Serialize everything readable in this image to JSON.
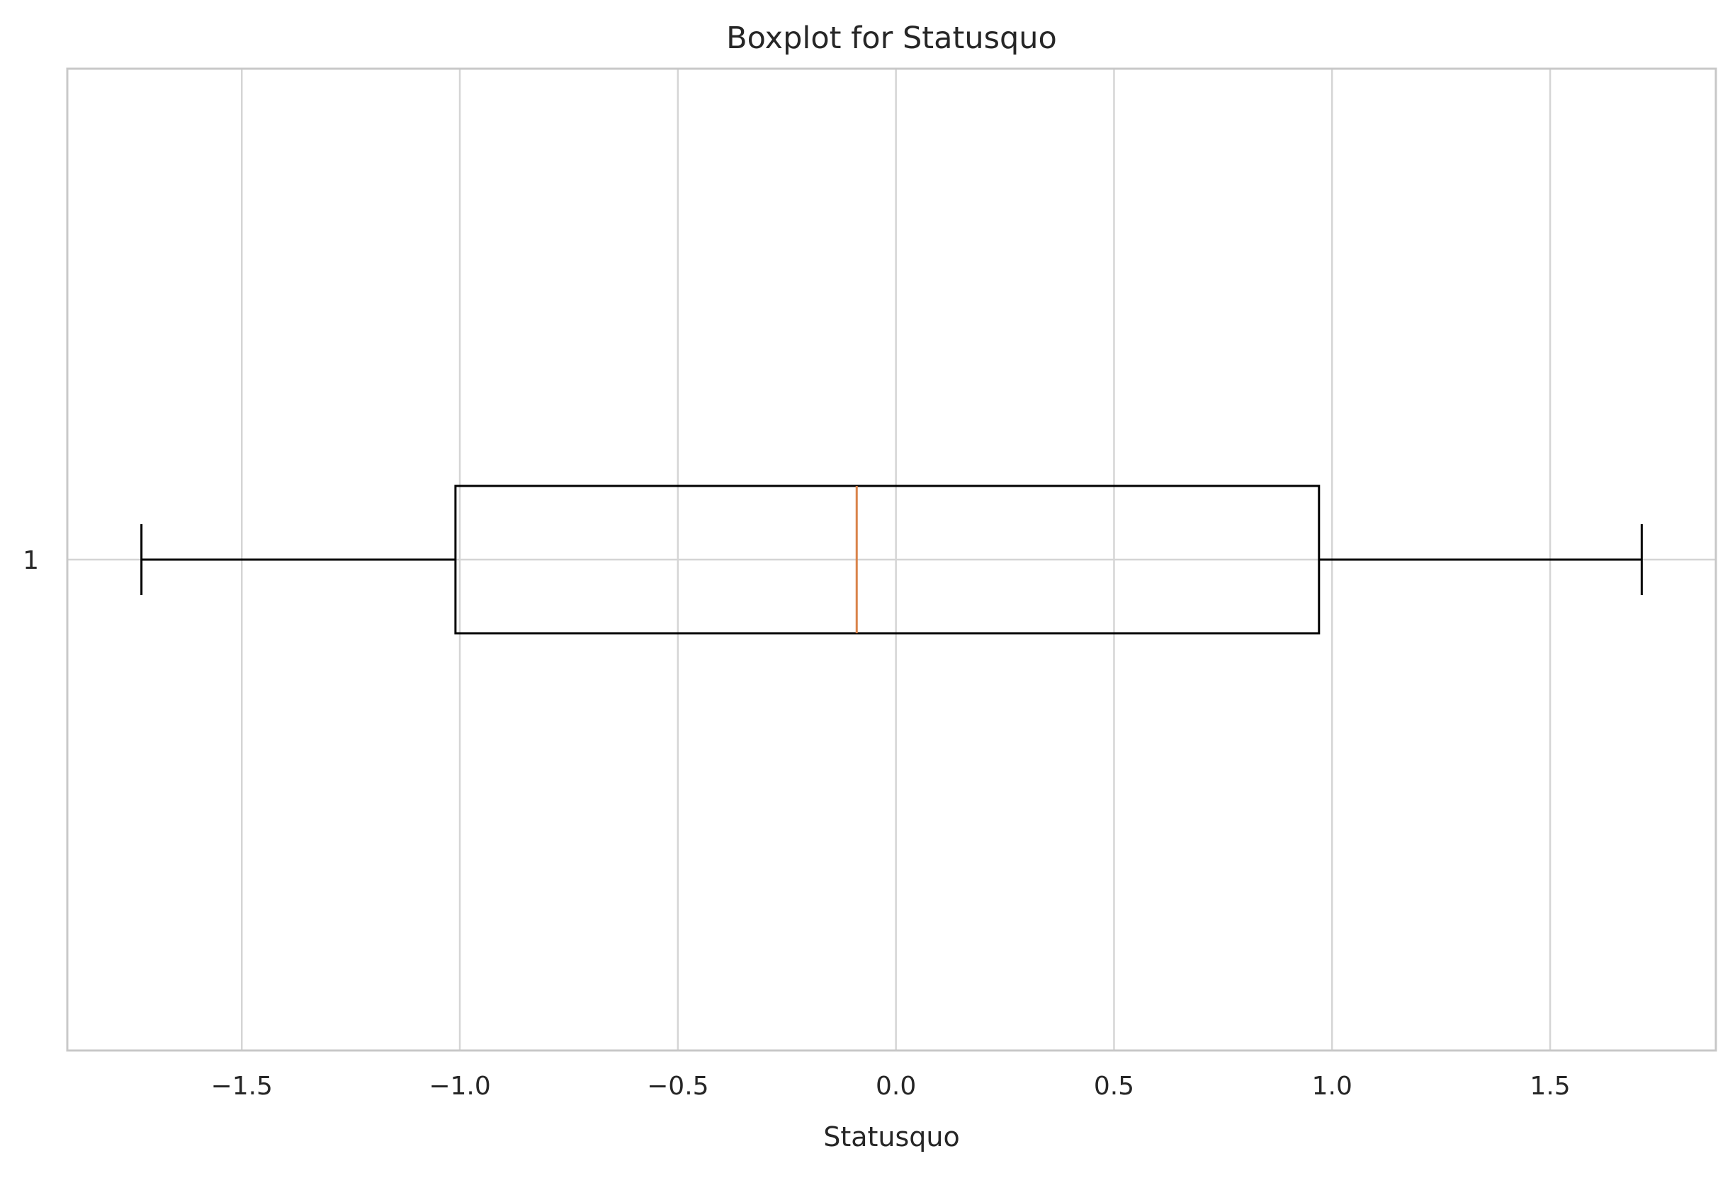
{
  "chart_data": {
    "type": "boxplot",
    "orientation": "horizontal",
    "title": "Boxplot for Statusquo",
    "xlabel": "Statusquo",
    "ylabel": "",
    "xlim": [
      -1.9,
      1.88
    ],
    "x_ticks": [
      -1.5,
      -1.0,
      -0.5,
      0.0,
      0.5,
      1.0,
      1.5
    ],
    "x_tick_labels": [
      "−1.5",
      "−1.0",
      "−0.5",
      "0.0",
      "0.5",
      "1.0",
      "1.5"
    ],
    "y_tick_labels": [
      "1"
    ],
    "grid": true,
    "boxes": [
      {
        "label": "1",
        "whisker_low": -1.73,
        "q1": -1.01,
        "median": -0.09,
        "q3": 0.97,
        "whisker_high": 1.71
      }
    ],
    "colors": {
      "box": "#000000",
      "median": "#d9834a",
      "grid": "#d5d5d5",
      "frame": "#c8c8c8",
      "text": "#262626"
    }
  }
}
